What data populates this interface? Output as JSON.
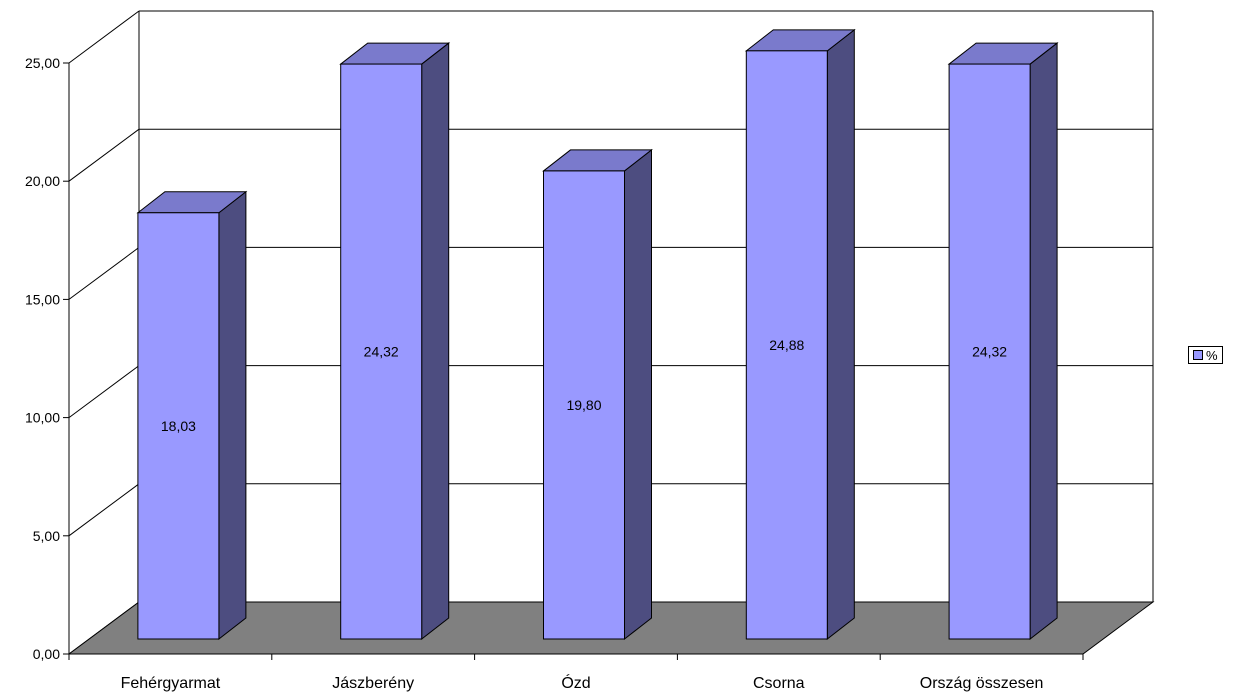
{
  "chart_data": {
    "type": "bar",
    "style": "3d-column",
    "categories": [
      "Fehérgyarmat",
      "Jászberény",
      "Ózd",
      "Csorna",
      "Ország összesen"
    ],
    "series": [
      {
        "name": "%",
        "values": [
          18.03,
          24.32,
          19.8,
          24.88,
          24.32
        ]
      }
    ],
    "data_labels": [
      "18,03",
      "24,32",
      "19,80",
      "24,88",
      "24,32"
    ],
    "y_ticks": [
      "0,00",
      "5,00",
      "10,00",
      "15,00",
      "20,00",
      "25,00"
    ],
    "ylim": [
      0,
      25
    ],
    "grid": true,
    "legend_position": "right",
    "colors": {
      "bar_front": "#9999ff",
      "bar_top": "#7a7acc",
      "bar_side": "#4d4d80",
      "floor": "#808080",
      "grid": "#000000"
    }
  },
  "legend": {
    "label": "%"
  }
}
